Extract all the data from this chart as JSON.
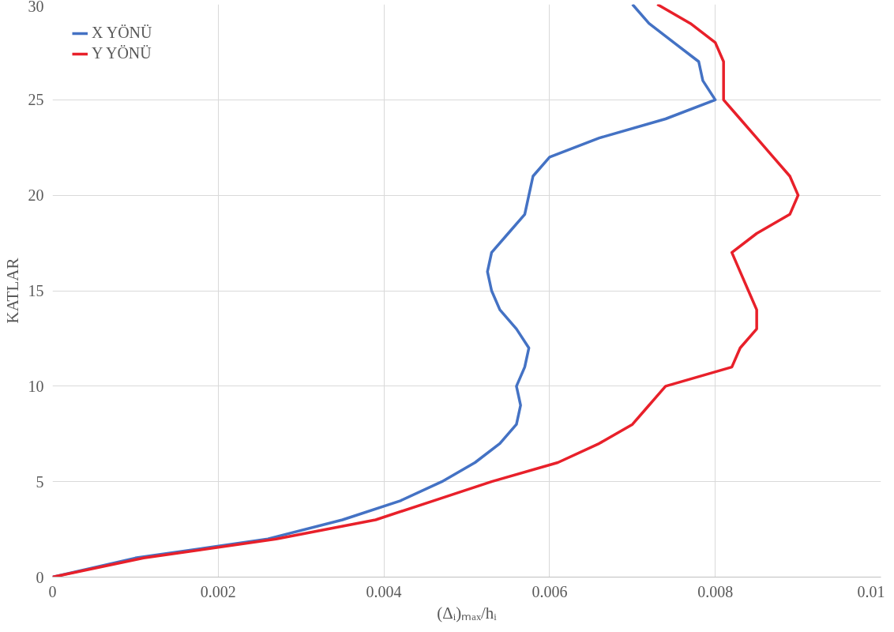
{
  "chart_data": {
    "type": "line",
    "xlabel": "(Δᵢ)ₘₐₓ/hᵢ",
    "ylabel": "KATLAR",
    "xlim": [
      0,
      0.01
    ],
    "ylim": [
      0,
      30
    ],
    "xticks": [
      0,
      0.002,
      0.004,
      0.006,
      0.008,
      0.01
    ],
    "yticks": [
      0,
      5,
      10,
      15,
      20,
      25,
      30
    ],
    "grid": true,
    "legend": "top left",
    "line_style": "solid",
    "marker": "none",
    "series": [
      {
        "name": "X YÖNÜ",
        "color": "#4472c4",
        "x": [
          0,
          0.001,
          0.0026,
          0.0035,
          0.0042,
          0.0047,
          0.0051,
          0.0054,
          0.0056,
          0.00565,
          0.0056,
          0.0057,
          0.00575,
          0.0056,
          0.0054,
          0.0053,
          0.00525,
          0.0053,
          0.0055,
          0.0057,
          0.00575,
          0.0058,
          0.006,
          0.0066,
          0.0074,
          0.008,
          0.00785,
          0.0078,
          0.0075,
          0.0072,
          0.007
        ],
        "values": [
          0,
          1,
          2,
          3,
          4,
          5,
          6,
          7,
          8,
          9,
          10,
          11,
          12,
          13,
          14,
          15,
          16,
          17,
          18,
          19,
          20,
          21,
          22,
          23,
          24,
          25,
          26,
          27,
          28,
          29,
          30
        ]
      },
      {
        "name": "Y YÖNÜ",
        "color": "#e8202a",
        "x": [
          0,
          0.0011,
          0.0027,
          0.0039,
          0.0046,
          0.0053,
          0.0061,
          0.0066,
          0.007,
          0.0072,
          0.0074,
          0.0082,
          0.0083,
          0.0085,
          0.0085,
          0.0084,
          0.0083,
          0.0082,
          0.0085,
          0.0089,
          0.009,
          0.0089,
          0.0087,
          0.0085,
          0.0083,
          0.0081,
          0.0081,
          0.0081,
          0.008,
          0.0077,
          0.0073
        ],
        "values": [
          0,
          1,
          2,
          3,
          4,
          5,
          6,
          7,
          8,
          9,
          10,
          11,
          12,
          13,
          14,
          15,
          16,
          17,
          18,
          19,
          20,
          21,
          22,
          23,
          24,
          25,
          26,
          27,
          28,
          29,
          30
        ]
      }
    ]
  }
}
